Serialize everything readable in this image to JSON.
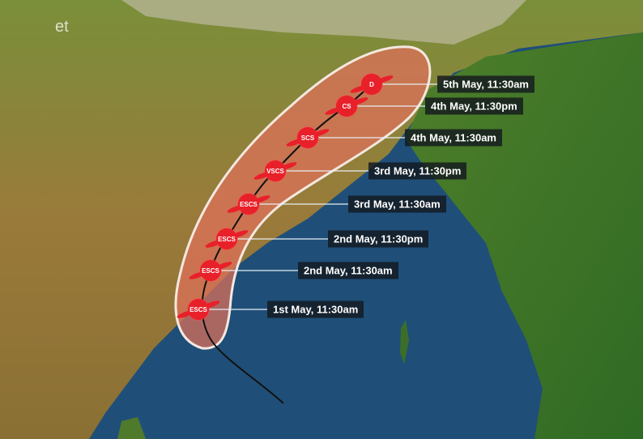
{
  "watermark": "et",
  "colors": {
    "cone_fill": "#e0705a",
    "cone_stroke": "#f4e8e0",
    "marker": "#e8202a",
    "label_bg": "#14191e",
    "sea": "#1f4f78",
    "land": "#6f8a2f"
  },
  "track": [
    {
      "category": "D",
      "time": "5th May, 11:30am"
    },
    {
      "category": "CS",
      "time": "4th May, 11:30pm"
    },
    {
      "category": "SCS",
      "time": "4th May, 11:30am"
    },
    {
      "category": "VSCS",
      "time": "3rd May, 11:30pm"
    },
    {
      "category": "ESCS",
      "time": "3rd May, 11:30am"
    },
    {
      "category": "ESCS",
      "time": "2nd May, 11:30pm"
    },
    {
      "category": "ESCS",
      "time": "2nd May, 11:30am"
    },
    {
      "category": "ESCS",
      "time": "1st May, 11:30am"
    }
  ]
}
